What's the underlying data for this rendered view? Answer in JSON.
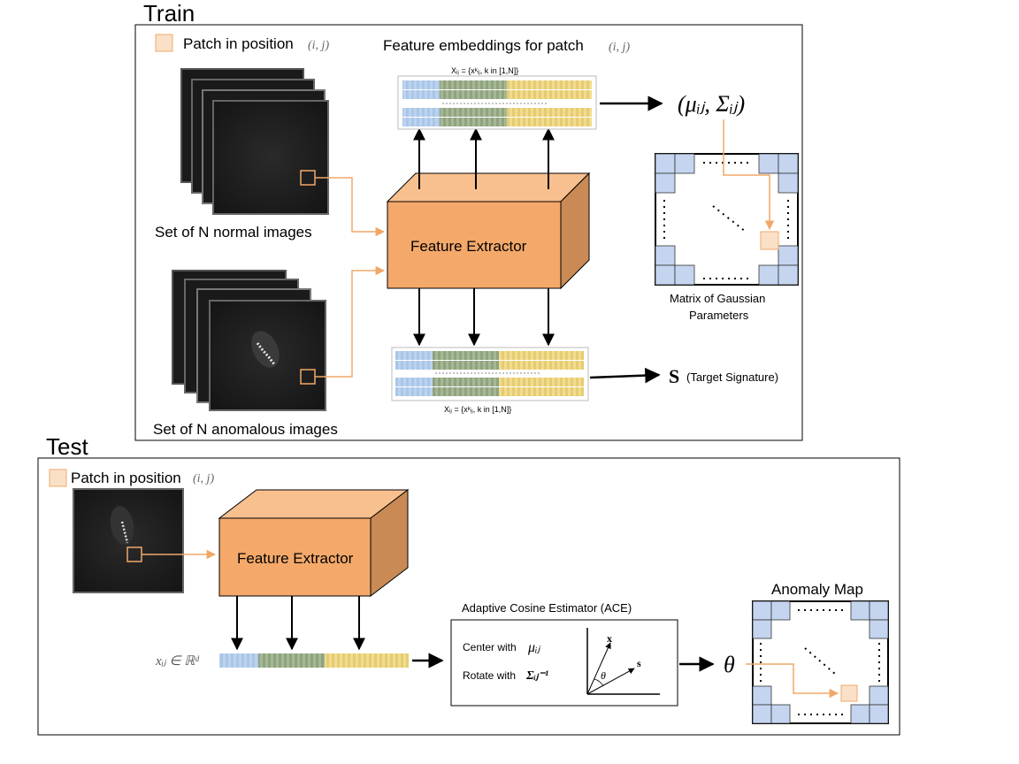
{
  "train": {
    "title": "Train",
    "legend": {
      "text": "Patch in position",
      "math": "(i, j)"
    },
    "embed_title": {
      "text": "Feature embeddings for patch",
      "math": "(i, j)"
    },
    "embed_formula_top": "Xᵢⱼ = {xᵏᵢⱼ, k in [1,N]}",
    "embed_formula_bottom": "Xᵢⱼ = {xᵏᵢⱼ, k in [1,N]}",
    "gaussian_params": "(μᵢⱼ, Σᵢⱼ)",
    "normal_label": "Set of N normal images",
    "anomalous_label": "Set of N anomalous images",
    "extractor_label": "Feature Extractor",
    "matrix_label_1": "Matrix of Gaussian",
    "matrix_label_2": "Parameters",
    "signature_symbol": "S",
    "signature_text": "(Target Signature)"
  },
  "test": {
    "title": "Test",
    "legend": {
      "text": "Patch in position",
      "math": "(i, j)"
    },
    "extractor_label": "Feature Extractor",
    "feature_vector": "xᵢⱼ ∈ ℝᵈ",
    "ace_title": "Adaptive Cosine Estimator (ACE)",
    "center_text": "Center with",
    "center_math": "μᵢⱼ",
    "rotate_text": "Rotate with",
    "rotate_math": "Σᵢⱼ⁻¹",
    "axis_x": "x",
    "axis_s": "s",
    "angle": "θ",
    "output_symbol": "θ",
    "anomaly_map": "Anomaly Map"
  },
  "colors": {
    "extractor_front": "#f4a96a",
    "extractor_top": "#f8c08e",
    "extractor_side": "#c98a55",
    "patch_fill": "#fbe0c8",
    "patch_stroke": "#f0a868",
    "cell_blue": "#c5d5f0",
    "seg_blue": "#a9c6e8",
    "seg_green": "#9aae8a",
    "seg_yellow": "#ebd27a",
    "orange_line": "#f0a868"
  }
}
